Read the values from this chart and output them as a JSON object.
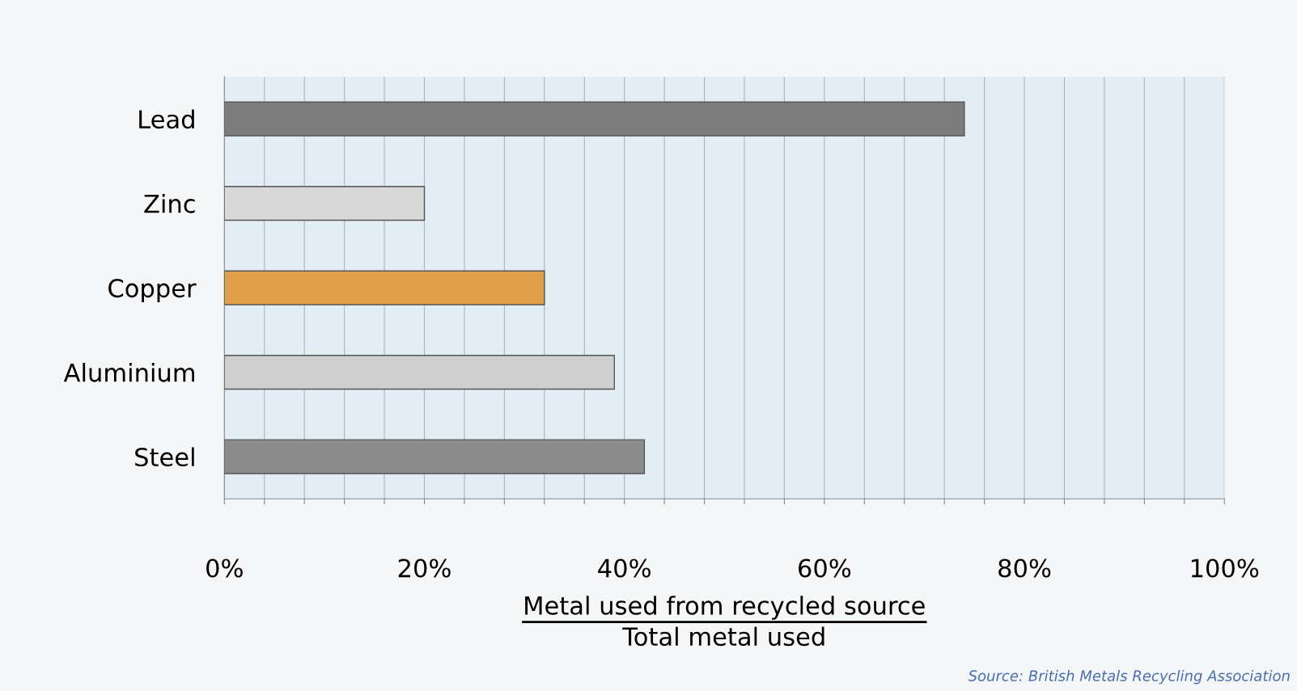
{
  "chart_data": {
    "type": "bar",
    "orientation": "horizontal",
    "categories": [
      "Lead",
      "Zinc",
      "Copper",
      "Aluminium",
      "Steel"
    ],
    "values": [
      74,
      20,
      32,
      39,
      42
    ],
    "colors": [
      "#7c7c7c",
      "#d9d9d9",
      "#e0a04c",
      "#cfcfcf",
      "#8c8c8c"
    ],
    "xlim": [
      0,
      100
    ],
    "xticks": [
      {
        "value": 0,
        "label": "0%"
      },
      {
        "value": 4,
        "label": null
      },
      {
        "value": 8,
        "label": null
      },
      {
        "value": 12,
        "label": null
      },
      {
        "value": 16,
        "label": null
      },
      {
        "value": 20,
        "label": "20%"
      },
      {
        "value": 24,
        "label": null
      },
      {
        "value": 28,
        "label": null
      },
      {
        "value": 32,
        "label": null
      },
      {
        "value": 36,
        "label": null
      },
      {
        "value": 40,
        "label": "40%"
      },
      {
        "value": 44,
        "label": null
      },
      {
        "value": 48,
        "label": null
      },
      {
        "value": 52,
        "label": null
      },
      {
        "value": 56,
        "label": null
      },
      {
        "value": 60,
        "label": "60%"
      },
      {
        "value": 64,
        "label": null
      },
      {
        "value": 68,
        "label": null
      },
      {
        "value": 72,
        "label": null
      },
      {
        "value": 76,
        "label": null
      },
      {
        "value": 80,
        "label": "80%"
      },
      {
        "value": 84,
        "label": null
      },
      {
        "value": 88,
        "label": null
      },
      {
        "value": 92,
        "label": null
      },
      {
        "value": 96,
        "label": null
      },
      {
        "value": 100,
        "label": "100%"
      }
    ],
    "grid": "x",
    "xlabel": "Metal used from recycled source",
    "annotations": [
      "Total metal used",
      "Source: British Metals Recycling Association"
    ]
  }
}
